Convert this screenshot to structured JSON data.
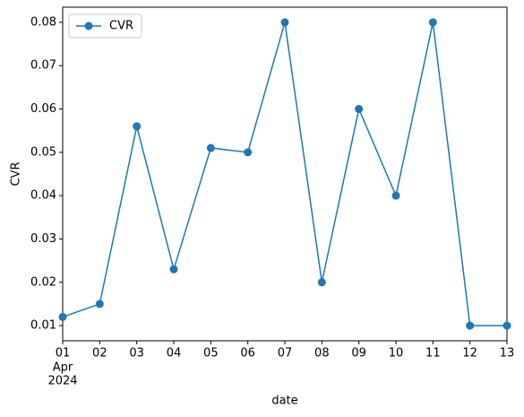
{
  "chart_data": {
    "type": "line",
    "x_label": "date",
    "y_label": "CVR",
    "x": [
      "2024-04-01",
      "2024-04-02",
      "2024-04-03",
      "2024-04-04",
      "2024-04-05",
      "2024-04-06",
      "2024-04-07",
      "2024-04-08",
      "2024-04-09",
      "2024-04-10",
      "2024-04-11",
      "2024-04-12",
      "2024-04-13"
    ],
    "series": [
      {
        "name": "CVR",
        "color": "#1f77b4",
        "values": [
          0.012,
          0.015,
          0.056,
          0.023,
          0.051,
          0.05,
          0.08,
          0.02,
          0.06,
          0.04,
          0.08,
          0.01,
          0.01
        ]
      }
    ],
    "xlim": [
      "2024-04-01",
      "2024-04-13"
    ],
    "xticks": [
      {
        "value": "2024-04-01",
        "label": "01"
      },
      {
        "value": "2024-04-02",
        "label": "02"
      },
      {
        "value": "2024-04-03",
        "label": "03"
      },
      {
        "value": "2024-04-04",
        "label": "04"
      },
      {
        "value": "2024-04-05",
        "label": "05"
      },
      {
        "value": "2024-04-06",
        "label": "06"
      },
      {
        "value": "2024-04-07",
        "label": "07"
      },
      {
        "value": "2024-04-08",
        "label": "08"
      },
      {
        "value": "2024-04-09",
        "label": "09"
      },
      {
        "value": "2024-04-10",
        "label": "10"
      },
      {
        "value": "2024-04-11",
        "label": "11"
      },
      {
        "value": "2024-04-12",
        "label": "12"
      },
      {
        "value": "2024-04-13",
        "label": "13"
      }
    ],
    "x_tick_sublabels": [
      "Apr",
      "2024"
    ],
    "ylim": [
      0.0065,
      0.0835
    ],
    "yticks": [
      0.01,
      0.02,
      0.03,
      0.04,
      0.05,
      0.06,
      0.07,
      0.08
    ],
    "legend": "upper left"
  }
}
